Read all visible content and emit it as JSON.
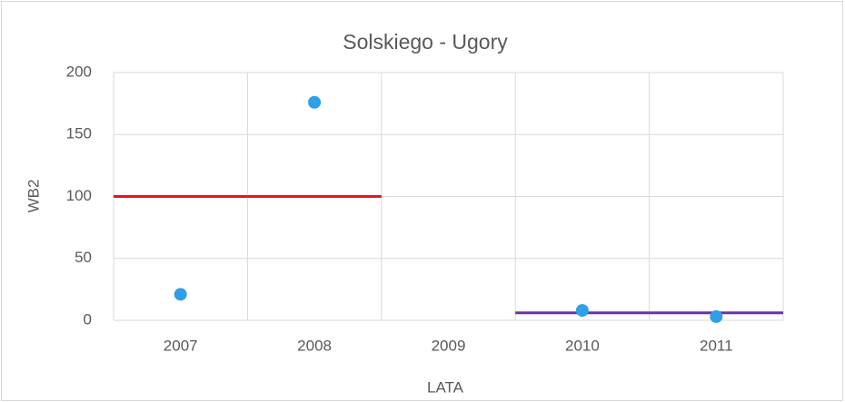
{
  "chart_data": {
    "type": "scatter",
    "title": "Solskiego - Ugory",
    "x_label": "LATA",
    "y_label": "WB2",
    "categories": [
      "2007",
      "2008",
      "2009",
      "2010",
      "2011"
    ],
    "series": [
      {
        "color": "#2f9fe8",
        "style": "marker",
        "values": [
          21,
          176,
          null,
          8,
          3
        ]
      },
      {
        "color": "#e8141c",
        "style": "level",
        "values": [
          100,
          100,
          null,
          null,
          null
        ]
      },
      {
        "color": "#7030a0",
        "style": "level",
        "values": [
          null,
          null,
          null,
          6,
          6
        ]
      }
    ],
    "ylim": [
      0,
      200
    ],
    "yticks": [
      0,
      50,
      100,
      150,
      200
    ],
    "grid": true
  }
}
